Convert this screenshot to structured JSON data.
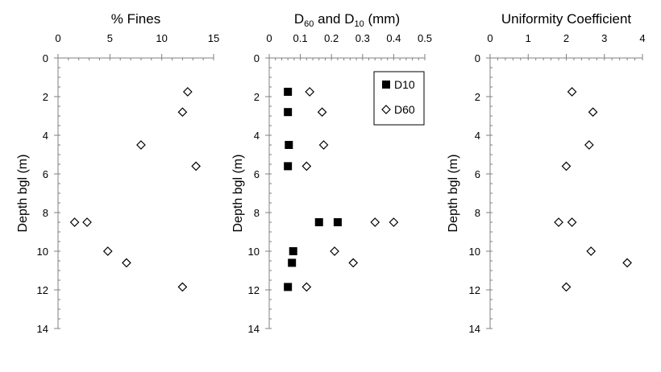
{
  "chart_data": [
    {
      "type": "scatter",
      "title": "% Fines",
      "ylabel": "Depth bgl (m)",
      "xlim": [
        0,
        15
      ],
      "ylim": [
        0,
        14
      ],
      "y_inverted": true,
      "x_axis_position": "top",
      "xticks": [
        0,
        5,
        10,
        15
      ],
      "yticks": [
        0,
        2,
        4,
        6,
        8,
        10,
        12,
        14
      ],
      "x_minor_step": 1,
      "y_minor_step": 0.5,
      "grid": false,
      "series": [
        {
          "marker": "diamond-open",
          "points": [
            {
              "x": 12.5,
              "y": 1.75
            },
            {
              "x": 12.0,
              "y": 2.8
            },
            {
              "x": 8.0,
              "y": 4.5
            },
            {
              "x": 13.3,
              "y": 5.6
            },
            {
              "x": 1.6,
              "y": 8.5
            },
            {
              "x": 2.8,
              "y": 8.5
            },
            {
              "x": 4.8,
              "y": 10.0
            },
            {
              "x": 6.6,
              "y": 10.6
            },
            {
              "x": 12.0,
              "y": 11.85
            }
          ]
        }
      ]
    },
    {
      "type": "scatter",
      "title_main": "D",
      "title_sub1": "60",
      "title_mid": " and D",
      "title_sub2": "10",
      "title_tail": " (mm)",
      "ylabel": "Depth bgl (m)",
      "xlim": [
        0,
        0.5
      ],
      "ylim": [
        0,
        14
      ],
      "y_inverted": true,
      "x_axis_position": "top",
      "xticks": [
        0,
        0.1,
        0.2,
        0.3,
        0.4,
        0.5
      ],
      "yticks": [
        0,
        2,
        4,
        6,
        8,
        10,
        12,
        14
      ],
      "x_minor_step": 0.02,
      "y_minor_step": 0.5,
      "grid": false,
      "legend": "top-right",
      "series": [
        {
          "name": "D10",
          "marker": "square-filled",
          "points": [
            {
              "x": 0.06,
              "y": 1.75
            },
            {
              "x": 0.06,
              "y": 2.8
            },
            {
              "x": 0.063,
              "y": 4.5
            },
            {
              "x": 0.06,
              "y": 5.6
            },
            {
              "x": 0.16,
              "y": 8.5
            },
            {
              "x": 0.22,
              "y": 8.5
            },
            {
              "x": 0.077,
              "y": 10.0
            },
            {
              "x": 0.073,
              "y": 10.6
            },
            {
              "x": 0.06,
              "y": 11.85
            }
          ]
        },
        {
          "name": "D60",
          "marker": "diamond-open",
          "points": [
            {
              "x": 0.13,
              "y": 1.75
            },
            {
              "x": 0.17,
              "y": 2.8
            },
            {
              "x": 0.175,
              "y": 4.5
            },
            {
              "x": 0.12,
              "y": 5.6
            },
            {
              "x": 0.34,
              "y": 8.5
            },
            {
              "x": 0.4,
              "y": 8.5
            },
            {
              "x": 0.21,
              "y": 10.0
            },
            {
              "x": 0.27,
              "y": 10.6
            },
            {
              "x": 0.12,
              "y": 11.85
            }
          ]
        }
      ]
    },
    {
      "type": "scatter",
      "title": "Uniformity Coefficient",
      "ylabel": "Depth bgl (m)",
      "xlim": [
        0,
        4
      ],
      "ylim": [
        0,
        14
      ],
      "y_inverted": true,
      "x_axis_position": "top",
      "xticks": [
        0,
        1,
        2,
        3,
        4
      ],
      "yticks": [
        0,
        2,
        4,
        6,
        8,
        10,
        12,
        14
      ],
      "x_minor_step": 0.2,
      "y_minor_step": 0.5,
      "grid": false,
      "series": [
        {
          "marker": "diamond-open",
          "points": [
            {
              "x": 2.15,
              "y": 1.75
            },
            {
              "x": 2.7,
              "y": 2.8
            },
            {
              "x": 2.6,
              "y": 4.5
            },
            {
              "x": 2.0,
              "y": 5.6
            },
            {
              "x": 1.8,
              "y": 8.5
            },
            {
              "x": 2.15,
              "y": 8.5
            },
            {
              "x": 2.65,
              "y": 10.0
            },
            {
              "x": 3.6,
              "y": 10.6
            },
            {
              "x": 2.0,
              "y": 11.85
            }
          ]
        }
      ]
    }
  ]
}
